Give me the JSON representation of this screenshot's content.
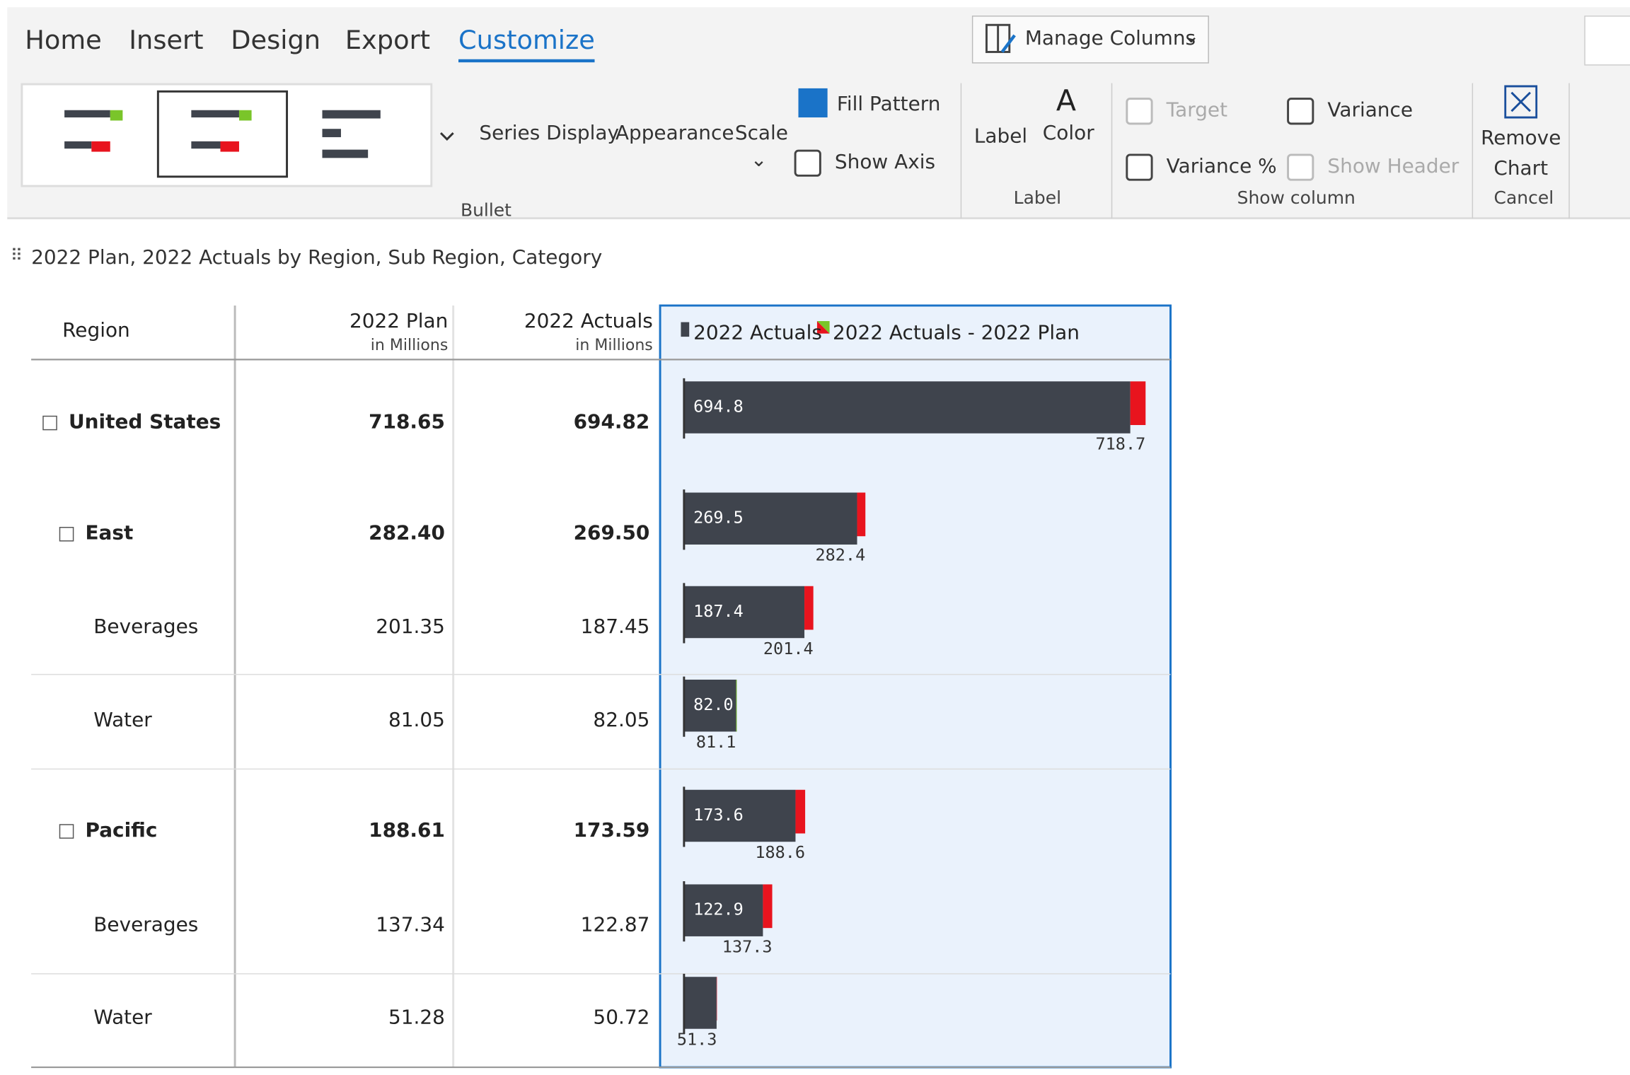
{
  "tabs": [
    "Home",
    "Insert",
    "Design",
    "Export",
    "Customize"
  ],
  "ribbon": {
    "manage_columns": "Manage Columns",
    "series_display": "Series Display",
    "appearance": "Appearance",
    "scale": "Scale",
    "fill_pattern": "Fill Pattern",
    "show_axis": "Show Axis",
    "bullet_group": "Bullet",
    "label_button": "Label",
    "color_button": "Color",
    "label_group": "Label",
    "target": "Target",
    "variance": "Variance",
    "variance_pct": "Variance %",
    "show_header": "Show Header",
    "show_column_group": "Show column",
    "remove_chart": "Remove Chart",
    "cancel": "Cancel"
  },
  "report": {
    "title": "2022 Plan, 2022 Actuals by Region, Sub Region, Category",
    "columns": {
      "region": "Region",
      "plan": {
        "name": "2022 Plan",
        "unit": "in Millions"
      },
      "actuals": {
        "name": "2022 Actuals",
        "unit": "in Millions"
      }
    },
    "legend": [
      "2022 Actuals",
      "2022 Actuals - 2022 Plan"
    ],
    "rows": [
      {
        "label": "United States",
        "plan": "718.65",
        "actuals": "694.82"
      },
      {
        "label": "East",
        "plan": "282.40",
        "actuals": "269.50"
      },
      {
        "label": "Beverages",
        "plan": "201.35",
        "actuals": "187.45"
      },
      {
        "label": "Water",
        "plan": "81.05",
        "actuals": "82.05"
      },
      {
        "label": "Pacific",
        "plan": "188.61",
        "actuals": "173.59"
      },
      {
        "label": "Beverages",
        "plan": "137.34",
        "actuals": "122.87"
      },
      {
        "label": "Water",
        "plan": "51.28",
        "actuals": "50.72"
      }
    ],
    "chart": {
      "type": "bullet",
      "actuals": [
        694.82,
        269.5,
        187.45,
        82.05,
        173.59,
        122.87,
        50.72
      ],
      "actual_labels": [
        "694.8",
        "269.5",
        "187.4",
        "82.0",
        "173.6",
        "122.9",
        null
      ],
      "plan": [
        718.65,
        282.4,
        201.35,
        81.05,
        188.61,
        137.34,
        51.28
      ],
      "plan_labels": [
        "718.7",
        "282.4",
        "201.4",
        "81.1",
        "188.6",
        "137.3",
        "51.3"
      ],
      "actual_color": "#3f444d",
      "negative_color": "#e8141e",
      "positive_color": "#7ac52a"
    }
  }
}
